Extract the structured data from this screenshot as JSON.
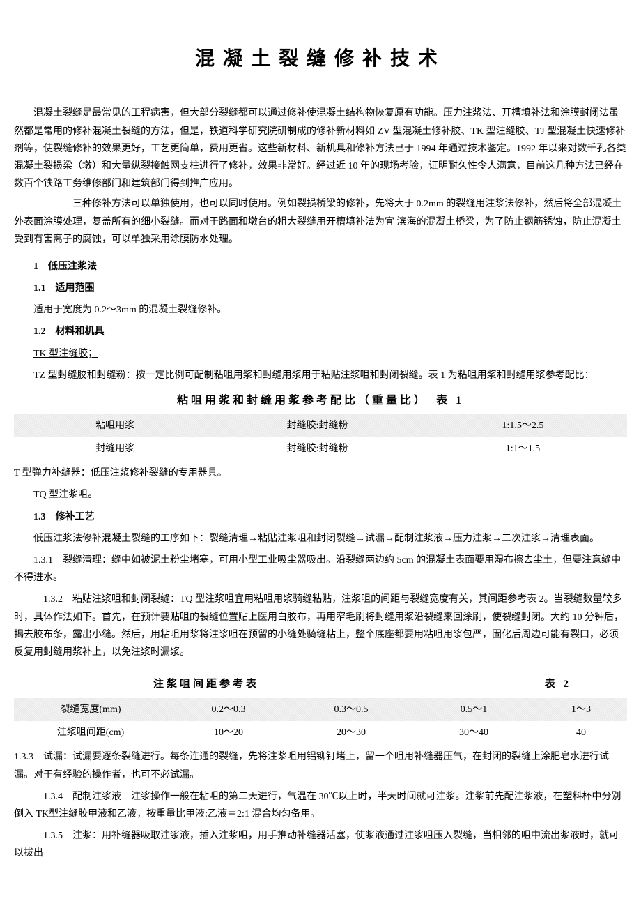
{
  "title": "混凝土裂缝修补技术",
  "intro1": "混凝土裂缝是最常见的工程病害，但大部分裂缝都可以通过修补使混凝土结构物恢复原有功能。压力注浆法、开槽填补法和涂膜封闭法虽然都是常用的修补混凝土裂缝的方法，但是，铁道科学研究院研制成的修补新材料如 ZV 型混凝土修补胶、TK 型注缝胶、TJ 型混凝土快速修补剂等，使裂缝修补的效果更好，工艺更简单，费用更省。这些新材料、新机具和修补方法已于 1994 年通过技术鉴定。1992 年以来对数千孔各类混凝土裂损梁（墩）和大量纵裂接触网支柱进行了修补，效果非常好。经过近 10 年的现场考验，证明耐久性令人满意，目前这几种方法已经在数百个铁路工务维修部门和建筑部门得到推广应用。",
  "intro2": "三种修补方法可以单独使用，也可以同时使用。例如裂损桥梁的修补，先将大于 0.2mm 的裂缝用注浆法修补，然后将全部混凝土外表面涂膜处理，复盖所有的细小裂缝。而对于路面和墩台的粗大裂缝用开槽填补法为宜 滨海的混凝土桥梁，为了防止钢筋锈蚀，防止混凝土受到有害离子的腐蚀，可以单独采用涂膜防水处理。",
  "s1": "1　低压注浆法",
  "s1_1": "1.1　适用范围",
  "s1_1_text": "适用于宽度为 0.2～3mm 的混凝土裂缝修补。",
  "s1_2": "1.2　材料和机具",
  "tk_label": "TK 型注缝胶；",
  "tz_text": "TZ 型封缝胶和封缝粉：按一定比例可配制粘咀用浆和封缝用浆用于粘贴注浆咀和封闭裂缝。表 1 为粘咀用浆和封缝用浆参考配比：",
  "table1_title": "粘咀用浆和封缝用浆参考配比（重量比）　表 1",
  "table1": {
    "rows": [
      [
        "粘咀用浆",
        "封缝胶:封缝粉",
        "1:1.5～2.5"
      ],
      [
        "封缝用浆",
        "封缝胶:封缝粉",
        "1:1～1.5"
      ]
    ]
  },
  "t_type": "T 型弹力补缝器：低压注浆修补裂缝的专用器具。",
  "tq_type": "TQ 型注浆咀。",
  "s1_3": "1.3　修补工艺",
  "s1_3_text": "低压注浆法修补混凝土裂缝的工序如下：裂缝清理→粘贴注浆咀和封闭裂缝→试漏→配制注浆液→压力注浆→二次注浆→清理表面。",
  "s1_3_1": "1.3.1　裂缝清理：缝中如被泥土粉尘堵塞，可用小型工业吸尘器吸出。沿裂缝两边约 5cm 的混凝土表面要用湿布擦去尘土，但要注意缝中不得进水。",
  "s1_3_2": "1.3.2　粘贴注浆咀和封闭裂缝：TQ 型注浆咀宜用粘咀用浆骑缝粘贴，注浆咀的间距与裂缝宽度有关，其间距参考表 2。当裂缝数量较多时，具体作法如下。首先，在预计要贴咀的裂缝位置贴上医用白胶布，再用窄毛刷将封缝用浆沿裂缝来回涂刷，使裂缝封闭。大约 10 分钟后，揭去胶布条，露出小缝。然后，用粘咀用浆将注浆咀在预留的小缝处骑缝粘上，整个底座都要用粘咀用浆包严，固化后周边可能有裂口，必须反复用封缝用浆补上，以免注浆时漏浆。",
  "table2_title_left": "注浆咀间距参考表",
  "table2_title_right": "表 2",
  "table2": {
    "rows": [
      [
        "裂缝宽度(mm)",
        "0.2～0.3",
        "0.3～0.5",
        "0.5～1",
        "1～3"
      ],
      [
        "注浆咀间距(cm)",
        "10～20",
        "20～30",
        "30～40",
        "40"
      ]
    ]
  },
  "s1_3_3": "1.3.3　试漏：试漏要逐条裂缝进行。每条连通的裂缝，先将注浆咀用铝铆钉堵上，留一个咀用补缝器压气，在封闭的裂缝上涂肥皂水进行试漏。对于有经验的操作者，也可不必试漏。",
  "s1_3_4": "1.3.4　配制注浆液　注浆操作一般在粘咀的第二天进行，气温在 30℃以上时，半天时间就可注浆。注浆前先配注浆液，在塑料杯中分别倒入 TK型注缝胶甲液和乙液，按重量比甲液:乙液＝2:1 混合均匀备用。",
  "s1_3_5": "1.3.5　注浆：用补缝器吸取注浆液，插入注浆咀，用手推动补缝器活塞，使浆液通过注浆咀压入裂缝，当相邻的咀中流出浆液时，就可以拔出"
}
